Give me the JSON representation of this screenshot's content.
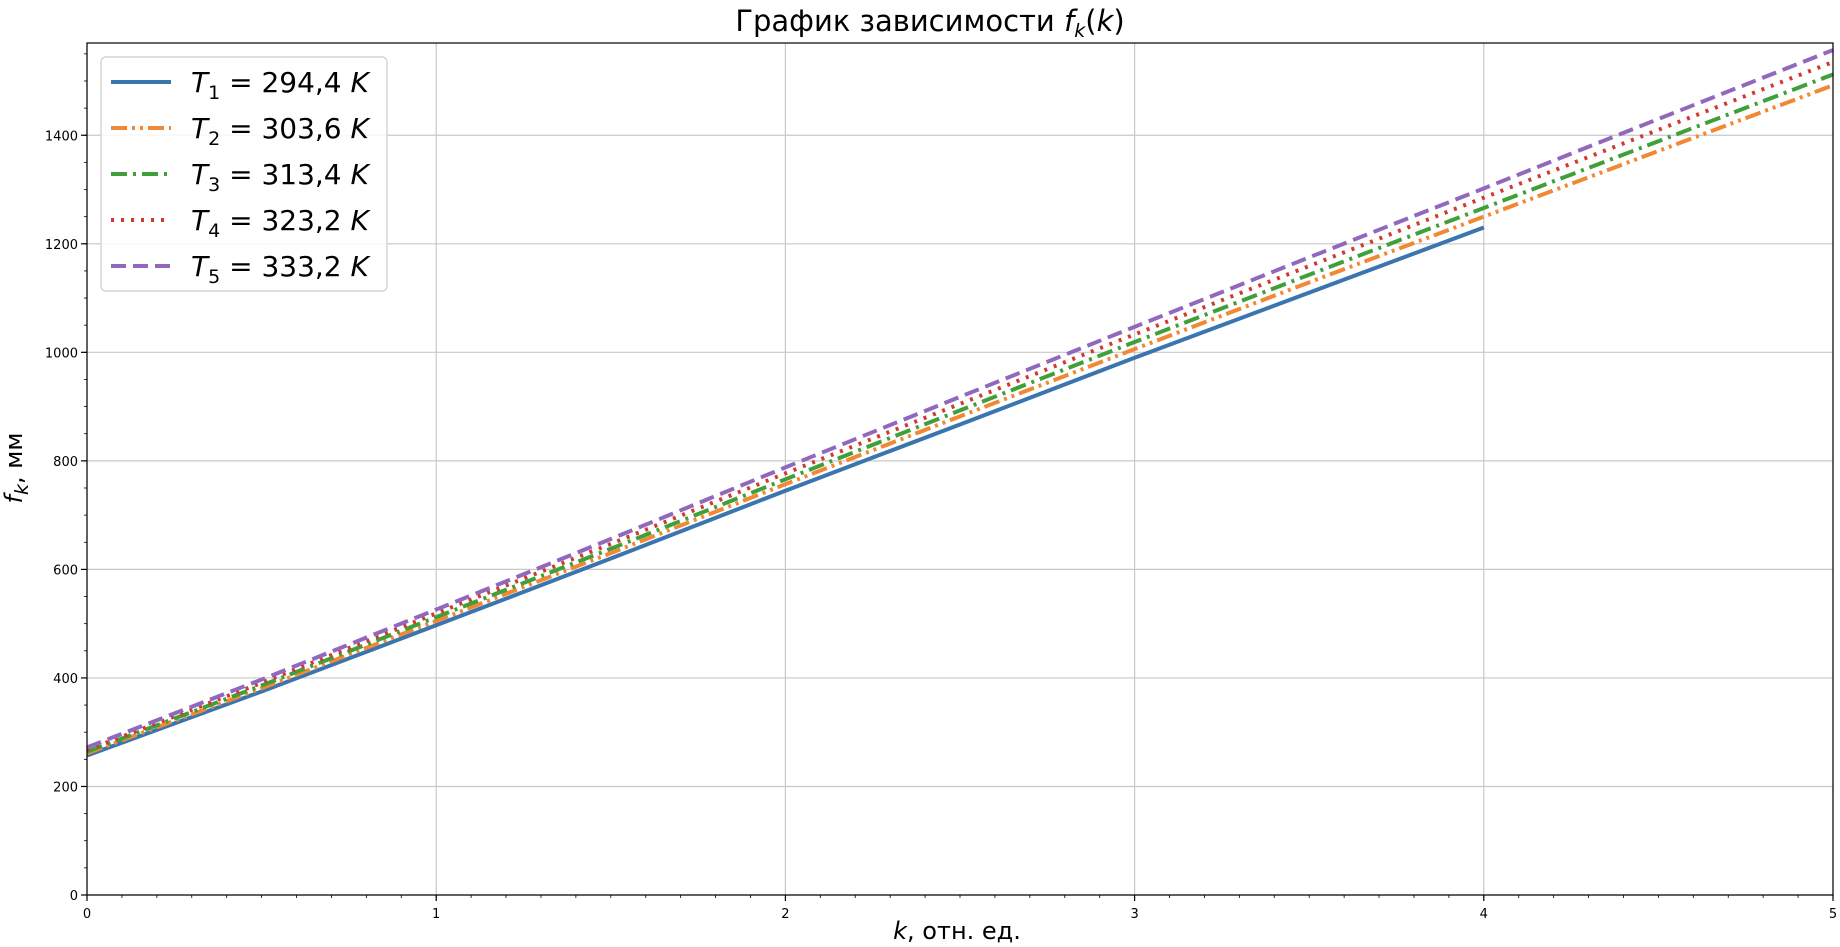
{
  "chart_data": {
    "type": "line",
    "title_prefix": "График зависимости ",
    "title_symbol": "f",
    "title_subscript": "k",
    "title_suffix_open": "(",
    "title_arg": "k",
    "title_suffix_close": ")",
    "xlabel_symbol": "k",
    "xlabel_text": ", отн. ед.",
    "ylabel_symbol": "f",
    "ylabel_subscript": "k",
    "ylabel_text": ", мм",
    "xlim": [
      0,
      5
    ],
    "ylim": [
      0,
      1570
    ],
    "x_ticks": [
      0,
      1,
      2,
      3,
      4,
      5
    ],
    "x_tick_labels": [
      "0",
      "1",
      "2",
      "3",
      "4",
      "5"
    ],
    "y_ticks": [
      0,
      200,
      400,
      600,
      800,
      1000,
      1200,
      1400
    ],
    "y_tick_labels": [
      "0",
      "200",
      "400",
      "600",
      "800",
      "1000",
      "1200",
      "1400"
    ],
    "grid": true,
    "legend_position": "top-left",
    "series": [
      {
        "name_symbol": "T",
        "name_subscript": "1",
        "name_value": " = 294,4 ",
        "name_unit": "K",
        "color": "#3a75b0",
        "dash": "solid",
        "x": [
          0,
          0.5,
          1,
          1.5,
          2,
          2.5,
          3,
          3.5,
          4
        ],
        "y": [
          257,
          375,
          497,
          620,
          745,
          867,
          990,
          1110,
          1230
        ]
      },
      {
        "name_symbol": "T",
        "name_subscript": "2",
        "name_value": " = 303,6 ",
        "name_unit": "K",
        "color": "#f28834",
        "dash": "dashdotdot",
        "x": [
          0,
          0.5,
          1,
          1.5,
          2,
          2.5,
          3,
          3.5,
          4,
          4.5,
          5
        ],
        "y": [
          261,
          381,
          505,
          630,
          757,
          882,
          1006,
          1129,
          1250,
          1371,
          1492
        ]
      },
      {
        "name_symbol": "T",
        "name_subscript": "3",
        "name_value": " = 313,4 ",
        "name_unit": "K",
        "color": "#3fa03a",
        "dash": "dashdot",
        "x": [
          0,
          0.5,
          1,
          1.5,
          2,
          2.5,
          3,
          3.5,
          4,
          4.5,
          5
        ],
        "y": [
          264,
          386,
          512,
          638,
          766,
          893,
          1019,
          1143,
          1266,
          1389,
          1512
        ]
      },
      {
        "name_symbol": "T",
        "name_subscript": "4",
        "name_value": " = 323,2 ",
        "name_unit": "K",
        "color": "#d03a33",
        "dash": "dotted",
        "x": [
          0,
          0.5,
          1,
          1.5,
          2,
          2.5,
          3,
          3.5,
          4,
          4.5,
          5
        ],
        "y": [
          267,
          391,
          519,
          647,
          777,
          905,
          1033,
          1159,
          1285,
          1410,
          1535
        ]
      },
      {
        "name_symbol": "T",
        "name_subscript": "5",
        "name_value": " = 333,2 ",
        "name_unit": "K",
        "color": "#9268be",
        "dash": "dashed",
        "x": [
          0,
          0.5,
          1,
          1.5,
          2,
          2.5,
          3,
          3.5,
          4,
          4.5,
          5
        ],
        "y": [
          272,
          397,
          526,
          656,
          788,
          918,
          1047,
          1175,
          1302,
          1430,
          1557
        ]
      }
    ]
  }
}
